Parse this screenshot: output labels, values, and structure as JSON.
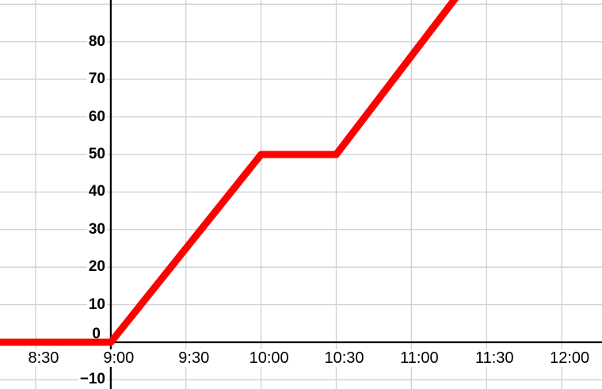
{
  "chart_data": {
    "type": "line",
    "title": "",
    "xlabel": "",
    "ylabel": "",
    "x_tick_labels": [
      "8:30",
      "9:00",
      "9:30",
      "10:00",
      "10:30",
      "11:00",
      "11:30",
      "12:00"
    ],
    "x_tick_values": [
      8.5,
      9,
      9.5,
      10,
      10.5,
      11,
      11.5,
      12
    ],
    "y_tick_labels": [
      "−10",
      "0",
      "10",
      "20",
      "30",
      "40",
      "50",
      "60",
      "70",
      "80",
      ""
    ],
    "y_tick_values": [
      -10,
      0,
      10,
      20,
      30,
      40,
      50,
      60,
      70,
      80,
      90
    ],
    "x_range": [
      8.263,
      12.268
    ],
    "y_range": [
      -12.44,
      91.12
    ],
    "axes_cross": [
      9,
      0
    ],
    "grid": true,
    "legend": "none",
    "series": [
      {
        "name": "red-line",
        "color": "#ff0000",
        "stroke_width": 9,
        "points": [
          [
            8.26,
            0
          ],
          [
            9,
            0
          ],
          [
            10,
            50
          ],
          [
            10.5,
            50
          ],
          [
            11.32,
            93
          ]
        ]
      }
    ],
    "colors": {
      "grid": "#d0d0d0",
      "axis": "#000000",
      "label": "#000000",
      "background": "#ffffff"
    },
    "description": "Value holds at 0 until 9:00, rises linearly to 50 between 9:00 and 10:00, stays at 50 until 10:30, then rises again and exits the top of the plot around 11:15."
  }
}
